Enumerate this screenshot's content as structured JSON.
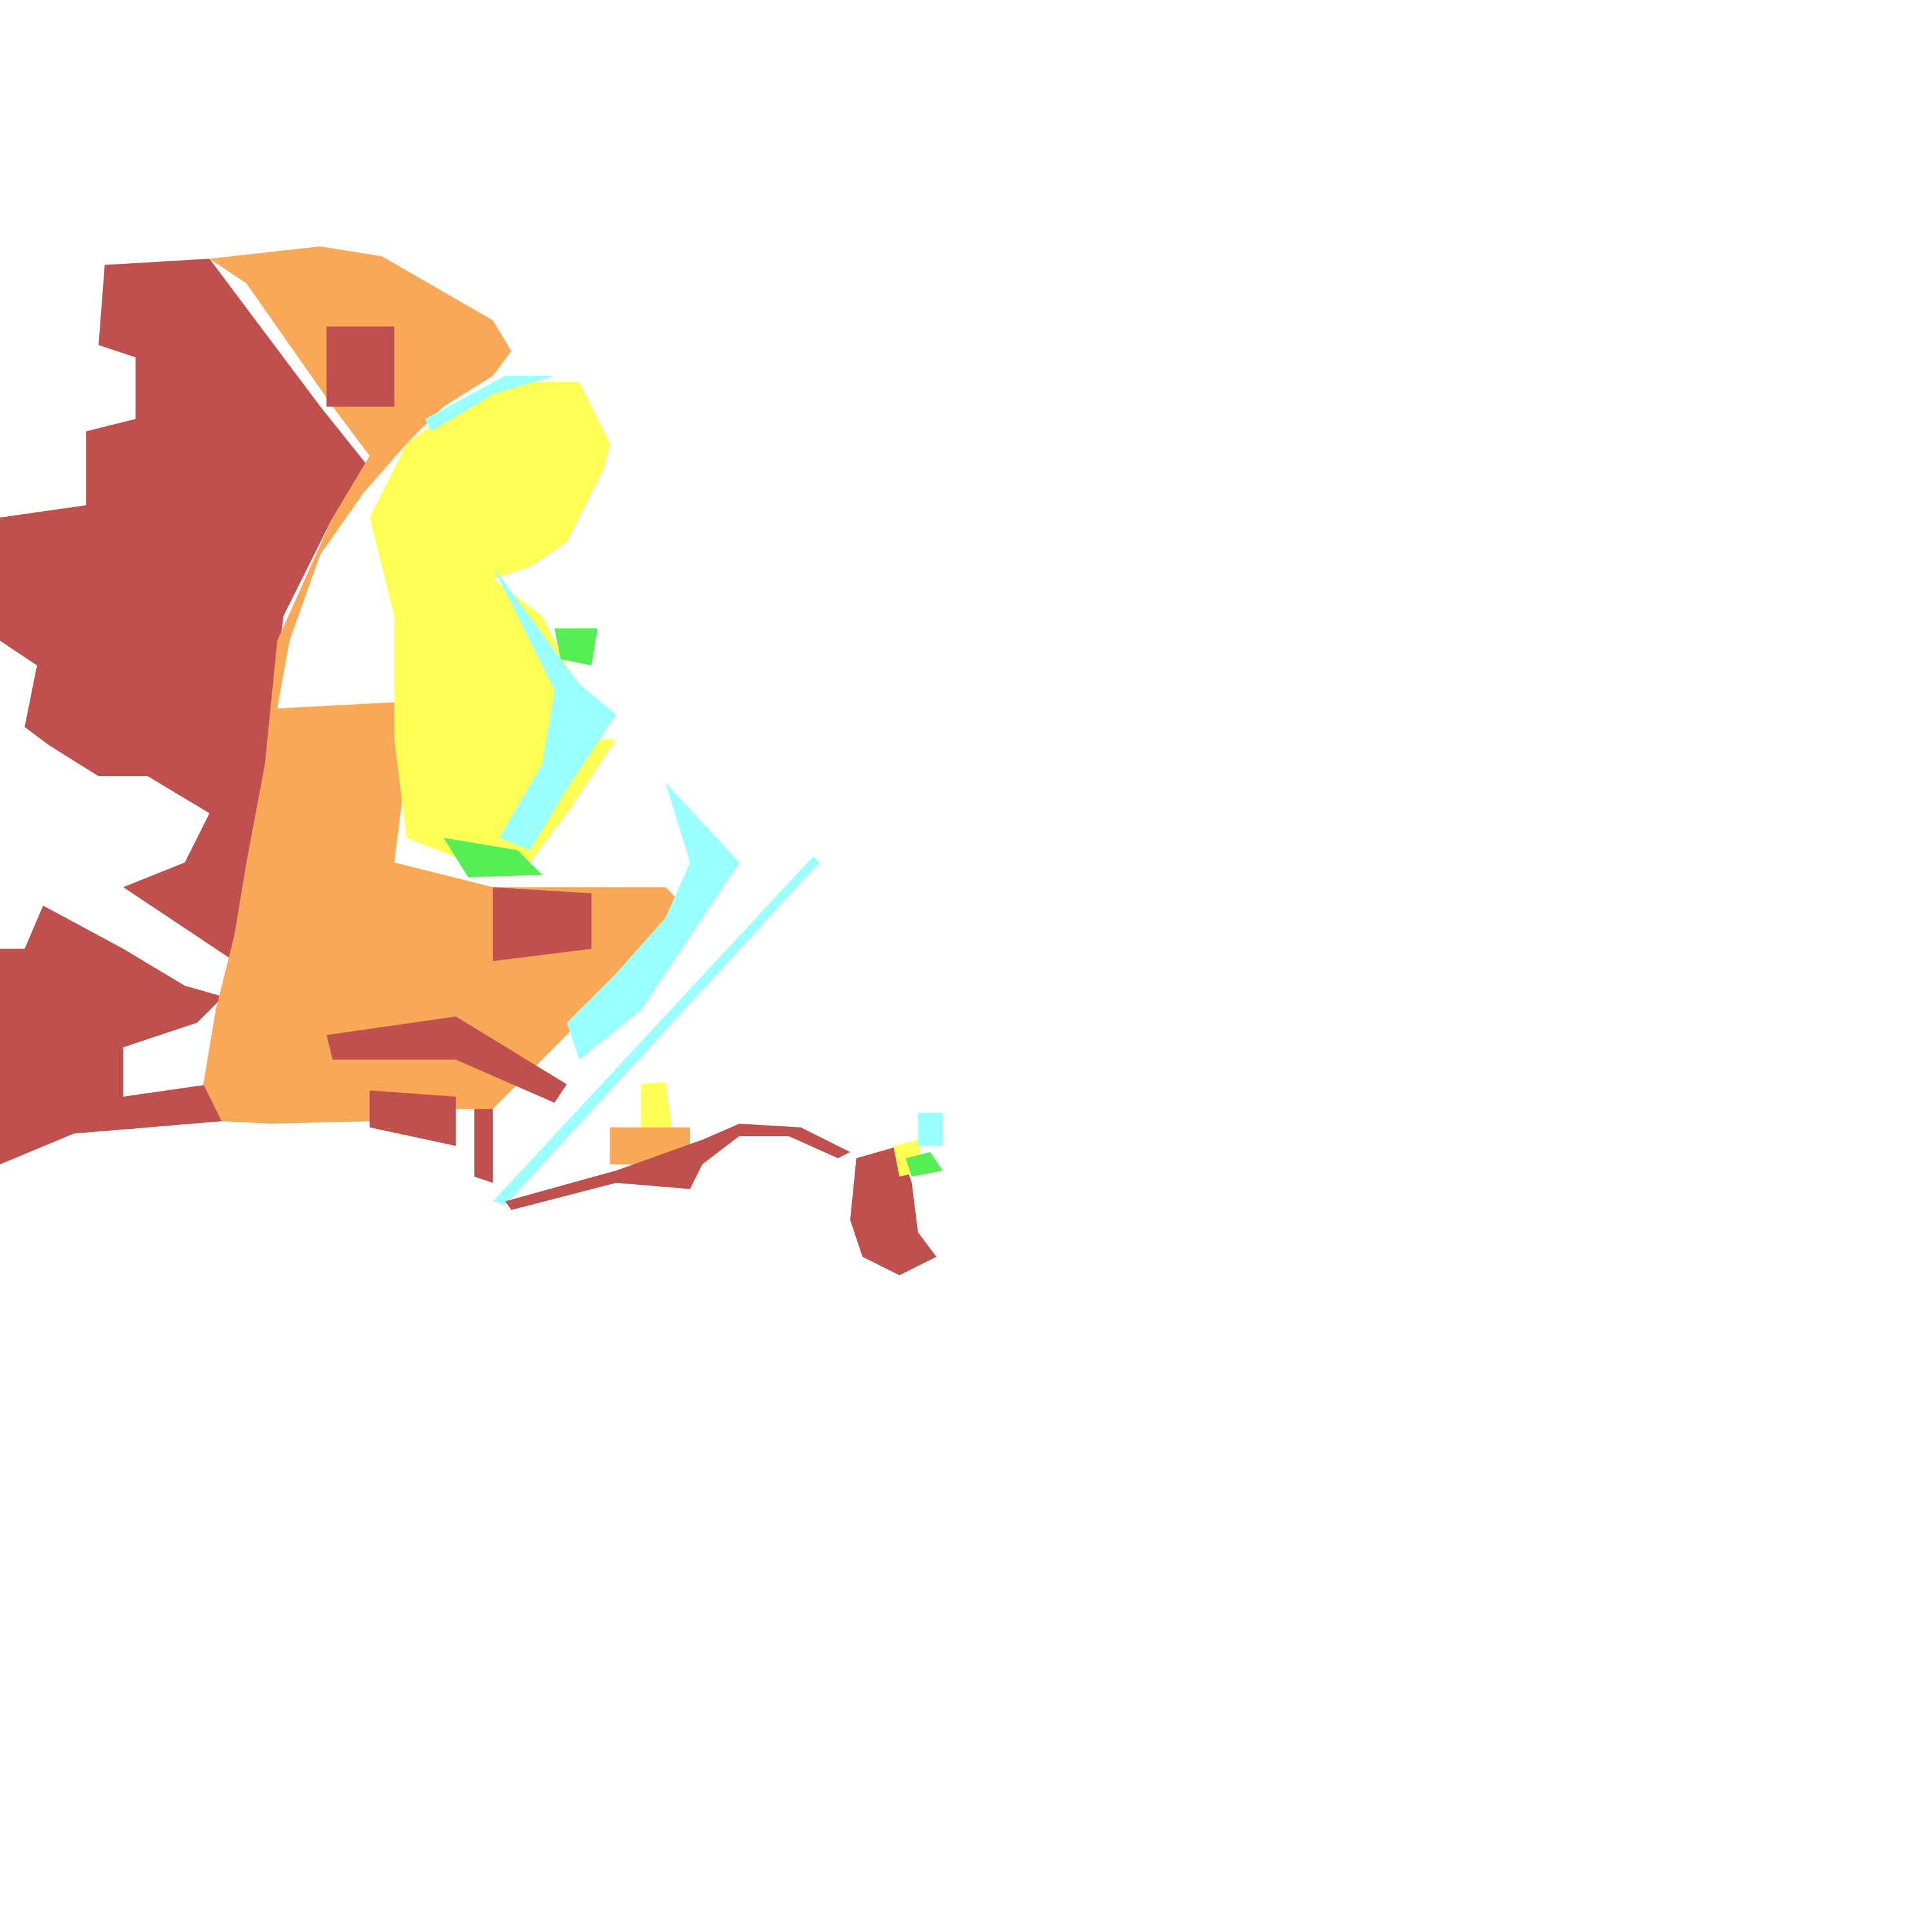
{
  "map": {
    "type": "classified raster tile",
    "background": "#ffffff",
    "classes": [
      {
        "id": "class-1",
        "color": "#C0504D"
      },
      {
        "id": "class-2",
        "color": "#F9A857"
      },
      {
        "id": "class-3",
        "color": "#FFFF55"
      },
      {
        "id": "class-4",
        "color": "#55EE55"
      },
      {
        "id": "class-5",
        "color": "#99FFFF"
      }
    ]
  }
}
